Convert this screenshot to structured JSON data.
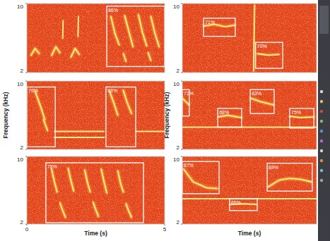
{
  "chart_data": [
    {
      "type": "spectrogram",
      "xlim": [
        0,
        5
      ],
      "ylim": [
        2,
        10
      ],
      "xticks": [],
      "yticks": [
        2,
        10
      ],
      "boxes": [
        {
          "t0": 2.9,
          "t1": 5.0,
          "f0": 2.7,
          "f1": 9.7,
          "label": "86%"
        }
      ],
      "calls": [
        {
          "t": [
            0.15,
            0.3,
            0.45
          ],
          "f": [
            4.0,
            4.8,
            4.2
          ]
        },
        {
          "t": [
            0.9,
            1.05,
            1.2
          ],
          "f": [
            4.0,
            5.0,
            4.3
          ]
        },
        {
          "t": [
            1.6,
            1.75,
            1.9
          ],
          "f": [
            3.8,
            4.8,
            4.1
          ]
        },
        {
          "t": [
            1.3,
            1.32
          ],
          "f": [
            6.0,
            8.0
          ]
        },
        {
          "t": [
            1.85,
            1.87
          ],
          "f": [
            6.2,
            8.5
          ]
        },
        {
          "t": [
            3.05,
            3.2,
            3.35
          ],
          "f": [
            8.5,
            6.5,
            5.2
          ]
        },
        {
          "t": [
            3.55,
            3.7,
            3.85
          ],
          "f": [
            8.6,
            6.8,
            5.0
          ]
        },
        {
          "t": [
            4.05,
            4.2,
            4.35
          ],
          "f": [
            8.7,
            6.6,
            5.1
          ]
        },
        {
          "t": [
            4.5,
            4.65,
            4.8
          ],
          "f": [
            8.5,
            6.5,
            5.0
          ]
        },
        {
          "t": [
            3.5,
            3.6
          ],
          "f": [
            4.2,
            3.3
          ]
        },
        {
          "t": [
            4.4,
            4.5
          ],
          "f": [
            4.3,
            3.4
          ]
        }
      ]
    },
    {
      "type": "spectrogram",
      "xlim": [
        0,
        5
      ],
      "ylim": [
        2,
        10
      ],
      "xticks": [],
      "yticks": [
        2,
        10
      ],
      "ylabel": "Frequency (kHz)",
      "boxes": [
        {
          "t0": 0.0,
          "t1": 1.03,
          "f0": 2.3,
          "f1": 9.3,
          "label": "76%"
        },
        {
          "t0": 2.87,
          "t1": 3.95,
          "f0": 2.3,
          "f1": 9.3,
          "label": "93%"
        }
      ],
      "calls": [
        {
          "t": [
            0.3,
            0.5,
            0.65
          ],
          "f": [
            8.8,
            7.0,
            5.5
          ]
        },
        {
          "t": [
            0.6,
            0.75
          ],
          "f": [
            5.5,
            4.2
          ]
        },
        {
          "t": [
            1.0,
            2.8
          ],
          "f": [
            4.1,
            4.1
          ]
        },
        {
          "t": [
            1.0,
            2.8
          ],
          "f": [
            3.4,
            3.4
          ]
        },
        {
          "t": [
            3.0,
            3.15,
            3.3
          ],
          "f": [
            8.8,
            7.5,
            6.0
          ]
        },
        {
          "t": [
            3.5,
            3.65,
            3.8
          ],
          "f": [
            8.9,
            7.4,
            6.2
          ]
        },
        {
          "t": [
            3.95,
            5.0
          ],
          "f": [
            4.1,
            4.1
          ]
        }
      ]
    },
    {
      "type": "spectrogram",
      "xlim": [
        0,
        5
      ],
      "ylim": [
        2,
        10
      ],
      "xticks": [
        0,
        5
      ],
      "yticks": [
        2,
        10
      ],
      "xlabel": "Time (s)",
      "boxes": [
        {
          "t0": 0.69,
          "t1": 4.23,
          "f0": 2.16,
          "f1": 9.25,
          "label": "78%"
        }
      ],
      "calls": [
        {
          "t": [
            0.9,
            1.0,
            1.1
          ],
          "f": [
            8.5,
            7.0,
            5.8
          ]
        },
        {
          "t": [
            1.5,
            1.6,
            1.7
          ],
          "f": [
            8.6,
            7.1,
            5.9
          ]
        },
        {
          "t": [
            2.1,
            2.2,
            2.3
          ],
          "f": [
            8.4,
            6.9,
            5.8
          ]
        },
        {
          "t": [
            2.7,
            2.8,
            2.9
          ],
          "f": [
            8.5,
            7.0,
            5.7
          ]
        },
        {
          "t": [
            3.3,
            3.4,
            3.5
          ],
          "f": [
            8.3,
            6.8,
            5.8
          ]
        },
        {
          "t": [
            1.2,
            1.3,
            1.4
          ],
          "f": [
            4.5,
            3.6,
            2.8
          ]
        },
        {
          "t": [
            2.4,
            2.5,
            2.6
          ],
          "f": [
            4.6,
            3.7,
            2.9
          ]
        },
        {
          "t": [
            3.6,
            3.7,
            3.8
          ],
          "f": [
            4.4,
            3.5,
            2.8
          ]
        }
      ]
    },
    {
      "type": "spectrogram",
      "xlim": [
        0,
        5
      ],
      "ylim": [
        2,
        10
      ],
      "xticks": [],
      "yticks": [
        2,
        10
      ],
      "boxes": [
        {
          "t0": 0.79,
          "t1": 1.97,
          "f0": 6.2,
          "f1": 8.3,
          "label": "71%"
        },
        {
          "t0": 2.73,
          "t1": 3.74,
          "f0": 2.5,
          "f1": 5.5,
          "label": "70%"
        }
      ],
      "calls": [
        {
          "t": [
            0.8,
            1.2,
            1.6,
            1.95
          ],
          "f": [
            7.4,
            7.6,
            7.3,
            7.5
          ]
        },
        {
          "t": [
            2.65,
            2.7
          ],
          "f": [
            2.2,
            9.8
          ]
        },
        {
          "t": [
            2.8,
            3.2,
            3.6
          ],
          "f": [
            4.2,
            4.0,
            4.1
          ]
        }
      ]
    },
    {
      "type": "spectrogram",
      "xlim": [
        0,
        5
      ],
      "ylim": [
        2,
        10
      ],
      "xticks": [],
      "yticks": [
        2,
        10
      ],
      "ylabel": "Frequency (kHz)",
      "boxes": [
        {
          "t0": 0.0,
          "t1": 0.26,
          "f0": 5.9,
          "f1": 9.0,
          "label": "72%"
        },
        {
          "t0": 1.32,
          "t1": 2.21,
          "f0": 4.6,
          "f1": 6.8,
          "label": "68%"
        },
        {
          "t0": 2.53,
          "t1": 3.42,
          "f0": 6.2,
          "f1": 9.0,
          "label": "83%"
        },
        {
          "t0": 4.0,
          "t1": 4.9,
          "f0": 4.5,
          "f1": 6.8,
          "label": "75%"
        }
      ],
      "calls": [
        {
          "t": [
            0.0,
            0.25
          ],
          "f": [
            8.0,
            7.2
          ]
        },
        {
          "t": [
            1.35,
            1.7,
            2.2
          ],
          "f": [
            5.8,
            6.0,
            5.7
          ]
        },
        {
          "t": [
            2.55,
            2.9,
            3.4
          ],
          "f": [
            8.0,
            7.6,
            7.2
          ]
        },
        {
          "t": [
            4.0,
            4.4,
            4.9
          ],
          "f": [
            5.9,
            5.7,
            5.8
          ]
        },
        {
          "t": [
            0.0,
            5.0
          ],
          "f": [
            4.6,
            4.6
          ]
        }
      ]
    },
    {
      "type": "spectrogram",
      "xlim": [
        0,
        5
      ],
      "ylim": [
        2,
        10
      ],
      "xticks": [],
      "yticks": [
        2,
        10
      ],
      "xlabel": "Time (s)",
      "boxes": [
        {
          "t0": 0.0,
          "t1": 1.37,
          "f0": 5.6,
          "f1": 9.4,
          "label": "87%"
        },
        {
          "t0": 1.76,
          "t1": 2.79,
          "f0": 3.6,
          "f1": 5.0,
          "label": "65%"
        },
        {
          "t0": 3.16,
          "t1": 4.84,
          "f0": 5.9,
          "f1": 9.2,
          "label": "89%"
        }
      ],
      "calls": [
        {
          "t": [
            0.05,
            0.4,
            0.9,
            1.3
          ],
          "f": [
            8.5,
            7.0,
            6.3,
            6.2
          ]
        },
        {
          "t": [
            1.8,
            2.3,
            2.75
          ],
          "f": [
            4.3,
            4.4,
            4.3
          ]
        },
        {
          "t": [
            3.2,
            3.6,
            4.0,
            4.4,
            4.8
          ],
          "f": [
            6.4,
            7.2,
            7.4,
            7.3,
            7.0
          ]
        },
        {
          "t": [
            0.0,
            5.0
          ],
          "f": [
            5.0,
            5.0
          ]
        }
      ]
    }
  ]
}
